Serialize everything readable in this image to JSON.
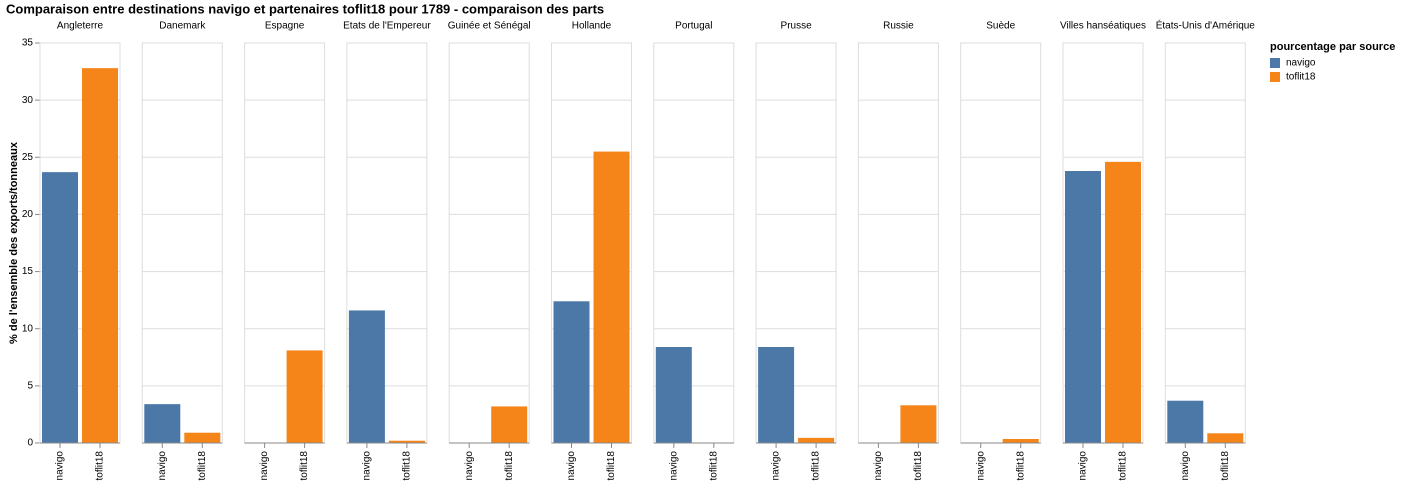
{
  "chart_data": {
    "type": "bar",
    "title": "Comparaison entre destinations navigo et partenaires toflit18 pour 1789 - comparaison des parts",
    "y_label": "% de l'ensemble des exports/tonneaux",
    "legend_title": "pourcentage par source",
    "legend": "top-right",
    "grid": true,
    "categories": [
      "Angleterre",
      "Danemark",
      "Espagne",
      "Etats de l'Empereur",
      "Guinée et Sénégal",
      "Hollande",
      "Portugal",
      "Prusse",
      "Russie",
      "Suède",
      "Villes hanséatiques",
      "États-Unis d'Amérique"
    ],
    "series": [
      {
        "name": "navigo",
        "color": "#4c78a8",
        "values": [
          23.7,
          3.4,
          0,
          11.6,
          0,
          12.4,
          8.4,
          8.4,
          0,
          0,
          23.8,
          3.7
        ]
      },
      {
        "name": "toflit18",
        "color": "#f58518",
        "values": [
          32.8,
          0.9,
          8.1,
          0.2,
          3.2,
          25.5,
          0,
          0.45,
          3.3,
          0.35,
          24.6,
          0.85
        ]
      }
    ],
    "ylim": [
      0,
      35
    ],
    "yticks": [
      0,
      5,
      10,
      15,
      20,
      25,
      30,
      35
    ]
  }
}
